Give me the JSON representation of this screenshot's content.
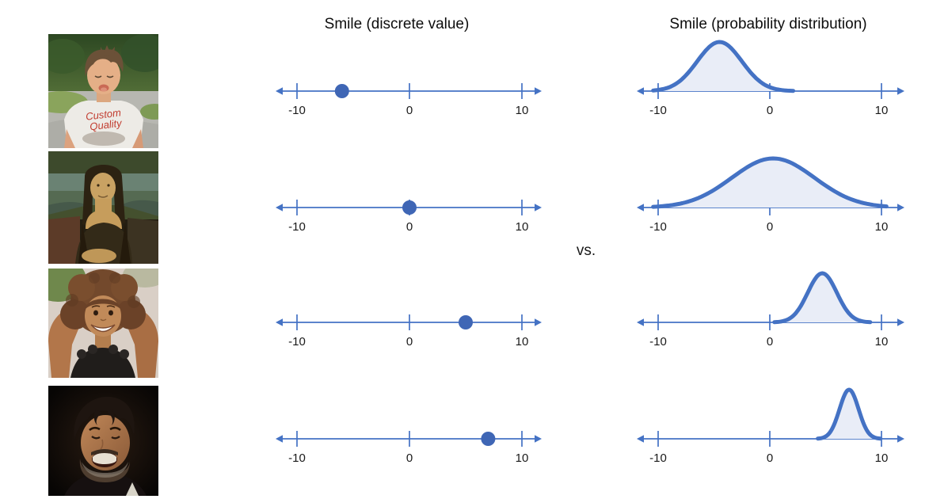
{
  "titles": {
    "discrete": "Smile (discrete value)",
    "distribution": "Smile (probability distribution)"
  },
  "vs_label": "vs.",
  "colors": {
    "axis": "#4472c4",
    "dot": "#3f66b5",
    "curve_stroke": "#4472c4",
    "curve_fill": "#e9edf7",
    "tick_label": "#1a1a1a",
    "title_text": "#0d0d0d"
  },
  "photos": [
    {
      "name": "frowning-boy",
      "description": "Boy pouting outdoors in white t-shirt",
      "shirt_text_line1": "Custom",
      "shirt_text_line2": "Quality"
    },
    {
      "name": "mona-lisa",
      "description": "Mona Lisa painting with subtle smile"
    },
    {
      "name": "smiling-girl",
      "description": "Smiling child with curly hair, hands behind head"
    },
    {
      "name": "laughing-man",
      "description": "Laughing bearded man on dark background"
    }
  ],
  "chart_data": [
    {
      "type": "scatter",
      "title": "Smile (discrete value)",
      "xlabel": "",
      "xlim": [
        -12,
        12
      ],
      "xticks": [
        -10,
        0,
        10
      ],
      "rows": [
        "frowning-boy",
        "mona-lisa",
        "smiling-girl",
        "laughing-man"
      ],
      "values": [
        -6,
        0,
        5,
        7
      ]
    },
    {
      "type": "area",
      "title": "Smile (probability distribution)",
      "xlabel": "",
      "xlim": [
        -12,
        12
      ],
      "xticks": [
        -10,
        0,
        10
      ],
      "rows": [
        "frowning-boy",
        "mona-lisa",
        "smiling-girl",
        "laughing-man"
      ],
      "series": [
        {
          "name": "frowning-boy",
          "mean": -4.5,
          "sd": 2.0
        },
        {
          "name": "mona-lisa",
          "mean": 0.3,
          "sd": 3.7
        },
        {
          "name": "smiling-girl",
          "mean": 4.7,
          "sd": 1.3
        },
        {
          "name": "laughing-man",
          "mean": 7.1,
          "sd": 0.85
        }
      ]
    }
  ]
}
